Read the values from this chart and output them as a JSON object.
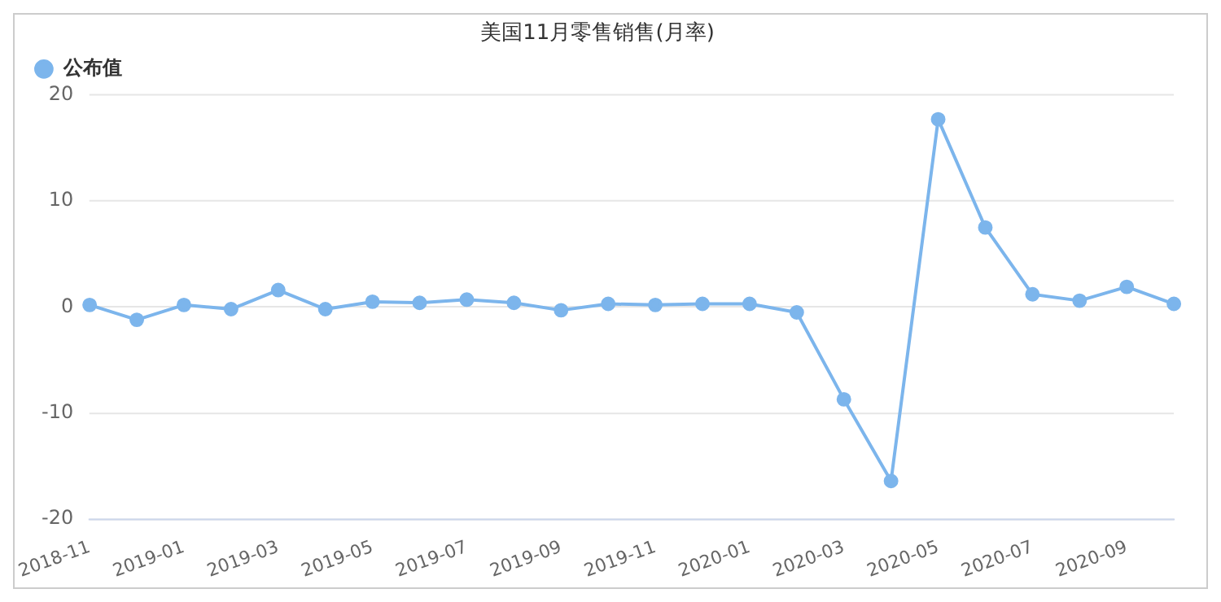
{
  "chart_data": {
    "type": "line",
    "title": "美国11月零售销售(月率)",
    "categories": [
      "2018-11",
      null,
      "2019-01",
      null,
      "2019-03",
      null,
      "2019-05",
      null,
      "2019-07",
      null,
      "2019-09",
      null,
      "2019-11",
      null,
      "2020-01",
      null,
      "2020-03",
      null,
      "2020-05",
      null,
      "2020-07",
      null,
      "2020-09",
      null
    ],
    "series": [
      {
        "name": "公布值",
        "color": "#7cb5ec",
        "values": [
          0.2,
          -1.2,
          0.2,
          -0.2,
          1.6,
          -0.2,
          0.5,
          0.4,
          0.7,
          0.4,
          -0.3,
          0.3,
          0.2,
          0.3,
          0.3,
          -0.5,
          -8.7,
          -16.4,
          17.7,
          7.5,
          1.2,
          0.6,
          1.9,
          0.3
        ]
      }
    ],
    "ylim": [
      -20,
      20
    ],
    "yticks": [
      -20,
      -10,
      0,
      10,
      20
    ],
    "grid": "y",
    "legend": "top left",
    "marker": "circle",
    "line_style": "solid"
  }
}
